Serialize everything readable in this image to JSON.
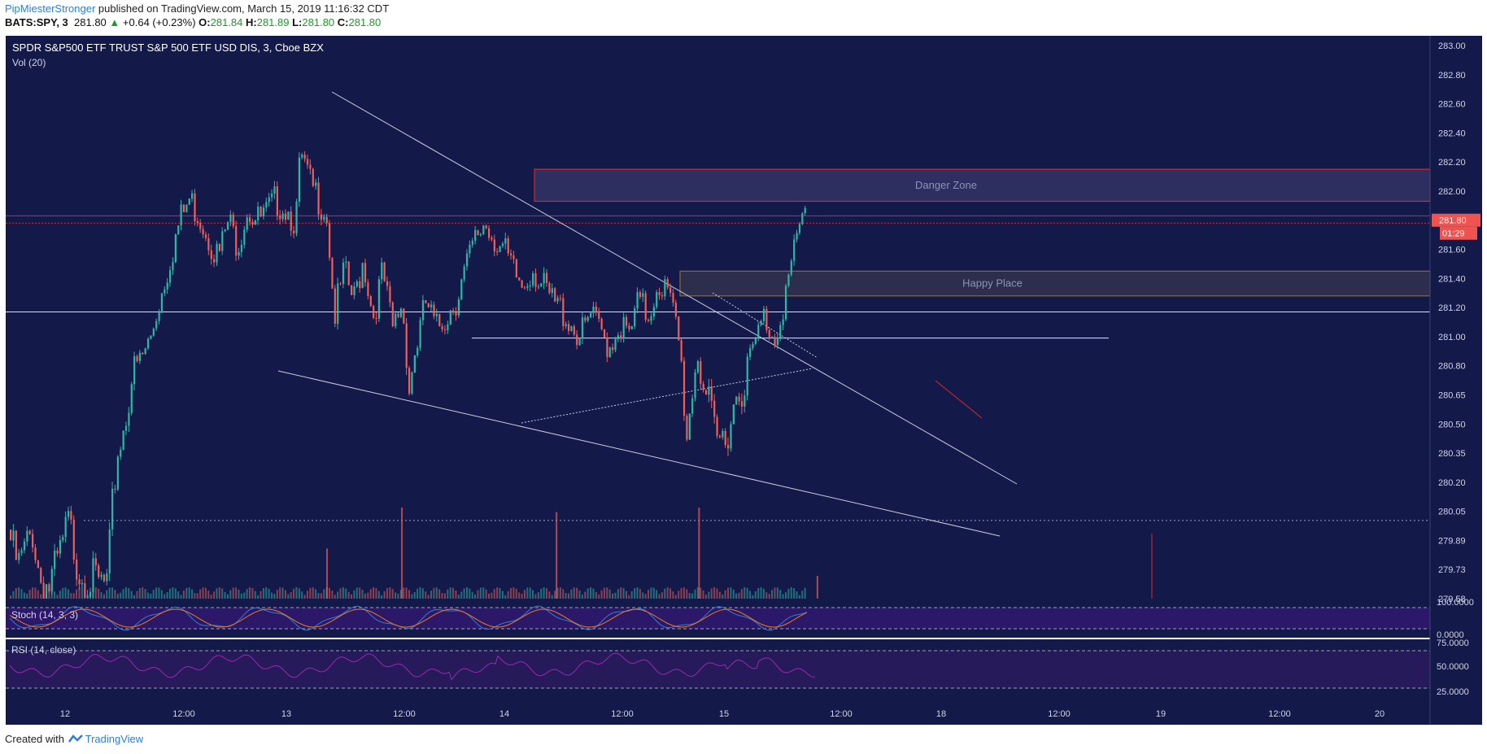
{
  "header": {
    "author": "PipMiesterStronger",
    "published_text": "published on TradingView.com, March 15, 2019 11:16:32 CDT",
    "symbol": "BATS:SPY, 3",
    "last": "281.80",
    "change_arrow": "▲",
    "change": "+0.64 (+0.23%)",
    "o_label": "O:",
    "o_value": "281.84",
    "h_label": "H:",
    "h_value": "281.89",
    "l_label": "L:",
    "l_value": "281.80",
    "c_label": "C:",
    "c_value": "281.80"
  },
  "pane": {
    "title": "SPDR S&P500 ETF TRUST S&P 500 ETF USD DIS, 3, Cboe BZX",
    "volume_label": "Vol (20)",
    "stoch_label": "Stoch (14, 3, 3)",
    "rsi_label": "RSI (14, close)"
  },
  "footer": {
    "created_with": "Created with",
    "brand": "TradingView"
  },
  "colors": {
    "background": "#131a4a",
    "up": "#2fb6a5",
    "down": "#ef5e5b",
    "danger_border": "#d9262e",
    "happy_border": "#8a6a2e",
    "stoch_band": "#2c1868",
    "rsi_band": "#271a5a",
    "rsi_line": "#9c27b0",
    "stoch_k": "#2f7fd1",
    "stoch_d": "#f07a1c",
    "price_tag": "#ef5350"
  },
  "chart_data": {
    "type": "candlestick",
    "title": "SPDR S&P500 ETF TRUST S&P 500 ETF USD DIS, 3, Cboe BZX",
    "x_ticks": [
      "12",
      "12:00",
      "13",
      "12:00",
      "14",
      "12:00",
      "15",
      "12:00",
      "18",
      "12:00",
      "19",
      "12:00",
      "20"
    ],
    "y_ticks": [
      "283.00",
      "282.80",
      "282.60",
      "282.40",
      "282.20",
      "282.00",
      "281.80",
      "281.60",
      "281.40",
      "281.20",
      "281.00",
      "280.80",
      "280.65",
      "280.50",
      "280.35",
      "280.20",
      "280.05",
      "279.89",
      "279.73",
      "279.58"
    ],
    "ylim": [
      279.58,
      283.0
    ],
    "last_price": "281.80",
    "countdown": "01:29",
    "price_path": [
      [
        0,
        279.95
      ],
      [
        0.3,
        279.8
      ],
      [
        0.6,
        279.9
      ],
      [
        0.9,
        280.0
      ],
      [
        1.2,
        279.75
      ],
      [
        1.6,
        279.7
      ],
      [
        2.0,
        279.85
      ],
      [
        2.4,
        280.05
      ],
      [
        2.8,
        279.8
      ],
      [
        3.2,
        279.75
      ],
      [
        3.6,
        279.72
      ],
      [
        4.0,
        279.7
      ],
      [
        4.2,
        280.1
      ],
      [
        4.4,
        280.4
      ],
      [
        4.7,
        280.55
      ],
      [
        5.0,
        280.8
      ],
      [
        5.4,
        280.9
      ],
      [
        5.8,
        281.05
      ],
      [
        6.0,
        281.2
      ],
      [
        6.3,
        281.4
      ],
      [
        6.6,
        281.6
      ],
      [
        7.0,
        281.85
      ],
      [
        7.4,
        282.0
      ],
      [
        7.8,
        281.9
      ],
      [
        8.2,
        281.75
      ],
      [
        8.6,
        281.6
      ],
      [
        9.0,
        281.85
      ],
      [
        9.4,
        281.7
      ],
      [
        9.8,
        281.95
      ],
      [
        10.2,
        281.85
      ],
      [
        10.6,
        281.9
      ],
      [
        11.0,
        282.0
      ],
      [
        11.4,
        281.95
      ],
      [
        11.8,
        281.85
      ],
      [
        12.0,
        282.3
      ],
      [
        12.4,
        282.1
      ],
      [
        12.8,
        282.0
      ],
      [
        13.1,
        281.9
      ],
      [
        13.4,
        281.2
      ],
      [
        13.8,
        281.5
      ],
      [
        14.2,
        281.3
      ],
      [
        14.6,
        281.6
      ],
      [
        15.0,
        281.2
      ],
      [
        15.4,
        281.5
      ],
      [
        15.8,
        281.1
      ],
      [
        16.2,
        281.3
      ],
      [
        16.5,
        280.75
      ],
      [
        16.8,
        281.0
      ],
      [
        17.2,
        281.3
      ],
      [
        17.6,
        281.1
      ],
      [
        18.0,
        281.2
      ],
      [
        18.4,
        281.3
      ],
      [
        18.8,
        281.5
      ],
      [
        19.2,
        281.7
      ],
      [
        19.6,
        281.85
      ],
      [
        20.0,
        281.75
      ],
      [
        20.4,
        281.65
      ],
      [
        20.8,
        281.5
      ],
      [
        21.2,
        281.4
      ],
      [
        21.6,
        281.55
      ],
      [
        22.0,
        281.4
      ],
      [
        22.4,
        281.3
      ],
      [
        22.8,
        281.25
      ],
      [
        23.2,
        281.15
      ],
      [
        23.6,
        281.05
      ],
      [
        24.0,
        281.2
      ],
      [
        24.4,
        281.1
      ],
      [
        24.8,
        281.0
      ],
      [
        25.2,
        281.15
      ],
      [
        25.6,
        281.05
      ],
      [
        26.0,
        281.3
      ],
      [
        26.4,
        281.2
      ],
      [
        26.8,
        281.45
      ],
      [
        27.2,
        281.35
      ],
      [
        27.6,
        281.1
      ],
      [
        28.0,
        280.5
      ],
      [
        28.4,
        280.95
      ],
      [
        28.8,
        280.7
      ],
      [
        29.2,
        280.45
      ],
      [
        29.6,
        280.5
      ],
      [
        30.0,
        280.7
      ],
      [
        30.4,
        280.8
      ],
      [
        30.8,
        281.0
      ],
      [
        31.2,
        281.2
      ],
      [
        31.6,
        281.05
      ],
      [
        32.0,
        281.3
      ],
      [
        32.4,
        281.6
      ],
      [
        32.8,
        281.9
      ]
    ],
    "volume_spikes": [
      [
        13.1,
        0.55
      ],
      [
        16.2,
        1.0
      ],
      [
        22.6,
        0.95
      ],
      [
        28.5,
        1.0
      ],
      [
        33.4,
        0.25
      ]
    ],
    "zones": [
      {
        "label": "Danger Zone",
        "top": 282.15,
        "bottom": 281.93
      },
      {
        "label": "Happy Place",
        "top": 281.45,
        "bottom": 281.28
      }
    ],
    "horizontal_levels": [
      281.83,
      281.78,
      281.17,
      280.99
    ],
    "dotted_level": 280.0,
    "stoch_levels": [
      80,
      20
    ],
    "rsi_levels": [
      70,
      30
    ],
    "rsi_ticks": [
      "75.0000",
      "50.0000",
      "25.0000"
    ],
    "stoch_ticks": [
      "100.0000",
      "0.0000"
    ]
  }
}
